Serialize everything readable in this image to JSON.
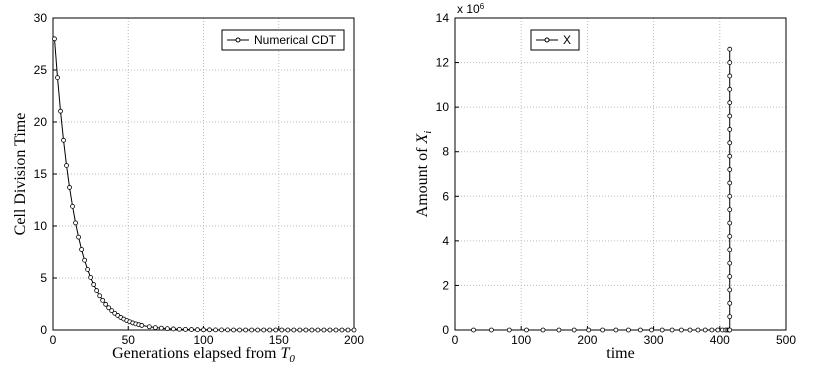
{
  "chart_data": [
    {
      "type": "line",
      "xlabel": {
        "text": "Generations elapsed from ",
        "symbol": "T",
        "subscript": "0"
      },
      "ylabel": {
        "text": "Cell Division Time"
      },
      "x": [
        1,
        3,
        5,
        7,
        9,
        11,
        13,
        15,
        17,
        19,
        21,
        23,
        25,
        27,
        29,
        31,
        33,
        35,
        37,
        39,
        41,
        43,
        45,
        47,
        49,
        51,
        53,
        55,
        57,
        59,
        64,
        68,
        72,
        76,
        80,
        84,
        88,
        92,
        96,
        100,
        104,
        108,
        112,
        116,
        120,
        124,
        128,
        132,
        136,
        140,
        144,
        148,
        152,
        156,
        160,
        164,
        168,
        172,
        176,
        180,
        184,
        188,
        192,
        196,
        200
      ],
      "series": [
        {
          "name": "Numerical CDT",
          "color": "#000000",
          "values": [
            28,
            24.27,
            21.04,
            18.24,
            15.82,
            13.71,
            11.89,
            10.3,
            8.93,
            7.74,
            6.71,
            5.82,
            5.05,
            4.37,
            3.79,
            3.29,
            2.85,
            2.47,
            2.14,
            1.86,
            1.61,
            1.4,
            1.21,
            1.05,
            0.91,
            0.79,
            0.68,
            0.59,
            0.51,
            0.44,
            0.31,
            0.23,
            0.18,
            0.13,
            0.1,
            0.07,
            0.06,
            0.04,
            0.03,
            0.02,
            0.02,
            0.01,
            0.01,
            0.01,
            0,
            0,
            0,
            0,
            0,
            0,
            0,
            0,
            0,
            0,
            0,
            0,
            0,
            0,
            0,
            0,
            0,
            0,
            0,
            0,
            0
          ]
        }
      ],
      "xlim": [
        0,
        200
      ],
      "xticks": [
        0,
        50,
        100,
        150,
        200
      ],
      "ylim": [
        0,
        30
      ],
      "yticks": [
        0,
        5,
        10,
        15,
        20,
        25,
        30
      ],
      "grid": true,
      "legend": "upper right"
    },
    {
      "type": "line",
      "xlabel": {
        "text": "time"
      },
      "ylabel": {
        "text": "Amount of ",
        "symbol": "X",
        "subscript": "i"
      },
      "multiplier": {
        "text": "x 10",
        "exponent": "6"
      },
      "x": [
        28,
        55,
        82,
        108,
        133,
        157,
        180,
        202,
        223,
        243,
        262,
        280,
        297,
        313,
        328,
        342,
        355,
        367,
        378,
        388,
        397,
        404,
        409,
        412,
        414,
        415,
        415,
        415,
        415,
        415,
        415,
        415,
        415,
        415,
        415,
        415,
        415,
        415,
        415,
        415,
        415,
        415,
        415,
        415,
        415,
        415,
        415
      ],
      "series": [
        {
          "name": "X",
          "color": "#000000",
          "values": [
            0,
            0,
            0,
            0,
            0,
            0,
            0,
            0,
            0,
            0,
            0,
            0,
            0,
            0,
            0,
            0,
            0,
            0,
            0,
            0,
            0,
            0,
            0,
            0,
            0,
            0,
            600000,
            1200000,
            1800000,
            2400000,
            3000000,
            3600000,
            4200000,
            4800000,
            5400000,
            6000000,
            6600000,
            7200000,
            7800000,
            8400000,
            9000000,
            9600000,
            10200000,
            10800000,
            11400000,
            12000000,
            12600000
          ]
        }
      ],
      "xlim": [
        0,
        500
      ],
      "xticks": [
        0,
        100,
        200,
        300,
        400,
        500
      ],
      "ylim": [
        0,
        14000000
      ],
      "yticks": [
        {
          "value": 0,
          "label": "0"
        },
        {
          "value": 2000000,
          "label": "2"
        },
        {
          "value": 4000000,
          "label": "4"
        },
        {
          "value": 6000000,
          "label": "6"
        },
        {
          "value": 8000000,
          "label": "8"
        },
        {
          "value": 10000000,
          "label": "10"
        },
        {
          "value": 12000000,
          "label": "12"
        },
        {
          "value": 14000000,
          "label": "14"
        }
      ],
      "grid": true,
      "legend": "upper left"
    }
  ]
}
